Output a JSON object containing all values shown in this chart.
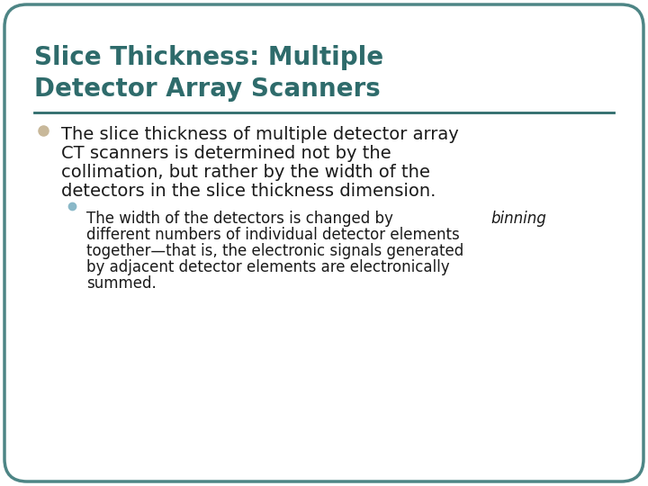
{
  "title_line1": "Slice Thickness: Multiple",
  "title_line2": "Detector Array Scanners",
  "title_color": "#2e6b6b",
  "background_color": "#ffffff",
  "border_color": "#4d8585",
  "divider_color": "#2e6b6b",
  "bullet1_color": "#c8b89a",
  "bullet2_color": "#8ab8c8",
  "bullet1_text_lines": [
    "The slice thickness of multiple detector array",
    "CT scanners is determined not by the",
    "collimation, but rather by the width of the",
    "detectors in the slice thickness dimension."
  ],
  "bullet2_text_pre": "The width of the detectors is changed by ",
  "bullet2_italic": "binning",
  "bullet2_text_lines": [
    "different numbers of individual detector elements",
    "together—that is, the electronic signals generated",
    "by adjacent detector elements are electronically",
    "summed."
  ],
  "body_text_color": "#1a1a1a",
  "title_fontsize": 20,
  "body_fontsize": 14,
  "sub_fontsize": 12
}
